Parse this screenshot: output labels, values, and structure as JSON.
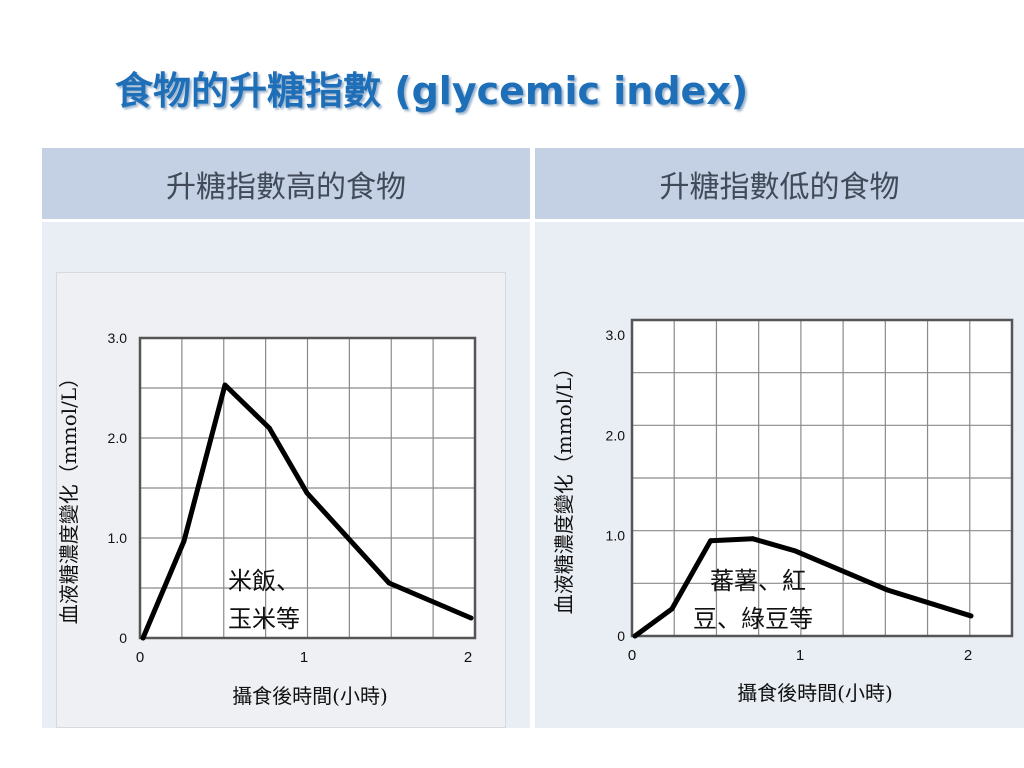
{
  "title": "食物的升糖指數 (glycemic index)",
  "panels": [
    {
      "header": "升糖指數高的食物"
    },
    {
      "header": "升糖指數低的食物"
    }
  ],
  "colors": {
    "title": "#1f6fb8",
    "header_bg": "#c4d0e3",
    "panel_bg": "#e9edf4",
    "line": "#000000"
  },
  "chart_data": [
    {
      "type": "line",
      "ylabel": "血液糖濃度變化（mmol/L）",
      "xlabel": "攝食後時間(小時)",
      "x_ticks": [
        "0",
        "1",
        "2"
      ],
      "y_ticks": [
        "0",
        "1.0",
        "2.0",
        "3.0"
      ],
      "xlim": [
        0,
        2.05
      ],
      "ylim": [
        0,
        3.0
      ],
      "grid": true,
      "series": [
        {
          "x": [
            0,
            0.25,
            0.5,
            0.77,
            1.0,
            1.5,
            2.0
          ],
          "y": [
            0,
            0.97,
            2.53,
            2.1,
            1.45,
            0.55,
            0.2
          ]
        }
      ],
      "annotation": [
        "米飯、",
        "玉米等"
      ]
    },
    {
      "type": "line",
      "ylabel": "血液糖濃度變化（mmol/L）",
      "xlabel": "攝食後時間(小時)",
      "x_ticks": [
        "0",
        "1",
        "2"
      ],
      "y_ticks": [
        "0",
        "1.0",
        "2.0",
        "3.0"
      ],
      "xlim": [
        0,
        2.2
      ],
      "ylim": [
        0,
        3.15
      ],
      "grid": true,
      "series": [
        {
          "x": [
            0,
            0.22,
            0.45,
            0.7,
            0.95,
            1.5,
            2.0
          ],
          "y": [
            0,
            0.27,
            0.95,
            0.97,
            0.85,
            0.46,
            0.2
          ]
        }
      ],
      "annotation": [
        "蕃薯、紅",
        "豆、綠豆等"
      ]
    }
  ]
}
